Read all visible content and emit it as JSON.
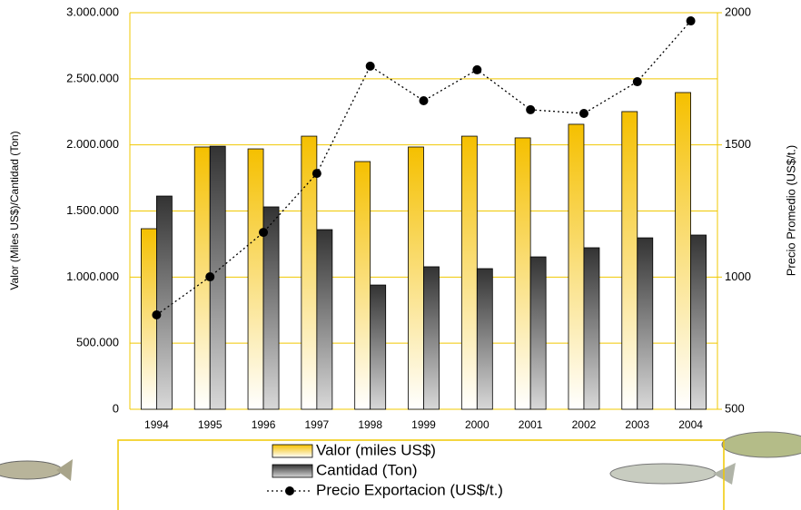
{
  "chart_data": {
    "type": "bar",
    "y_label": "Valor (Miles US$)/Cantidad (Ton)",
    "y2_label": "Precio Promedio (US$/t.)",
    "categories": [
      "1994",
      "1995",
      "1996",
      "1997",
      "1998",
      "1999",
      "2000",
      "2001",
      "2002",
      "2003",
      "2004"
    ],
    "series": [
      {
        "name": "Valor (miles US$)",
        "type": "bar",
        "color": "#f5c000",
        "values": [
          1366000,
          1984000,
          1970000,
          2066000,
          1874000,
          1984000,
          2066000,
          2053000,
          2156000,
          2252000,
          2396000
        ]
      },
      {
        "name": "Cantidad (Ton)",
        "type": "bar",
        "color": "#333333",
        "values": [
          1613000,
          1990000,
          1531000,
          1359000,
          940000,
          1078000,
          1064000,
          1153000,
          1222000,
          1297000,
          1318000
        ]
      },
      {
        "name": "Precio Exportacion (US$/t.)",
        "type": "line",
        "axis": "y2",
        "color": "#000000",
        "values": [
          857,
          1001,
          1169,
          1392,
          1798,
          1667,
          1784,
          1633,
          1619,
          1739,
          1969
        ]
      }
    ],
    "ylim": [
      0,
      3000000
    ],
    "yticks": [
      0,
      {
        "value": 500000,
        "label": "500.000"
      },
      {
        "value": 1000000,
        "label": "1.000.000"
      },
      {
        "value": 1500000,
        "label": "1.500.000"
      },
      {
        "value": 2000000,
        "label": "2.000.000"
      },
      {
        "value": 2500000,
        "label": "2.500.000"
      },
      {
        "value": 3000000,
        "label": "3.000.000"
      }
    ],
    "y2lim": [
      500,
      2000
    ],
    "y2ticks": [
      500,
      1000,
      1500,
      2000
    ],
    "grid": true,
    "grid_color": "#f0c800",
    "legend": "bottom"
  }
}
